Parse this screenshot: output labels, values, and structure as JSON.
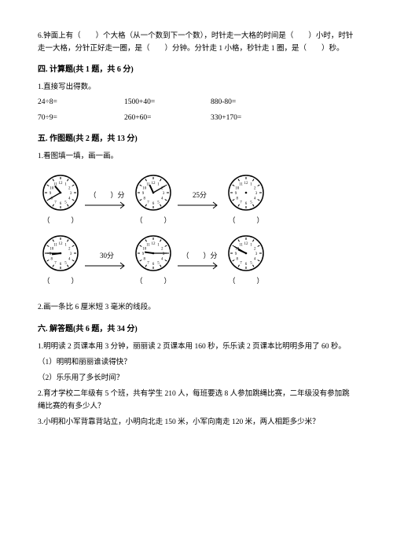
{
  "q6": "6.钟面上有（　　）个大格（从一个数到下一个数），时针走一大格的时间是（　　）小时，时针走一大格，分针正好走一圈，是（　　）分钟。分针走 1 小格，秒针走 1 圈，是（　　）秒。",
  "sec4_title": "四. 计算题(共 1 题，共 6 分)",
  "sec4_q": "1.直接写出得数。",
  "calc": {
    "r1": [
      "24÷8=",
      "1500+40=",
      "880-80="
    ],
    "r2": [
      "70÷9=",
      "260+60=",
      "330+170="
    ]
  },
  "sec5_title": "五. 作图题(共 2 题，共 13 分)",
  "sec5_q1": "1.看图填一填，画一画。",
  "clock": {
    "row1": {
      "c1": {
        "hour": 10,
        "min": 40
      },
      "arrow1": "（　　）分",
      "c2": {
        "hour": 11,
        "min": 10
      },
      "arrow2": "25分",
      "c3": {
        "hour": null,
        "min": null
      }
    },
    "row2": {
      "c1": {
        "hour": 8,
        "min": 45
      },
      "arrow1": "30分",
      "c2": {
        "hour": 9,
        "min": 15
      },
      "arrow2": "（　　）分",
      "c3": {
        "hour": 9,
        "min": 50
      }
    },
    "cell_paren": "（　　　）"
  },
  "sec5_q2": "2.画一条比 6 厘米短 3 毫米的线段。",
  "sec6_title": "六. 解答题(共 6 题，共 34 分)",
  "sec6_q1": "1.明明读 2 页课本用 3 分钟，丽丽读 2 页课本用 160 秒，乐乐读 2 页课本比明明多用了 60 秒。",
  "sec6_q1_1": "（1）明明和丽丽谁读得快？",
  "sec6_q1_2": "（2）乐乐用了多长时间？",
  "sec6_q2": "2.育才学校二年级有 5 个班，共有学生 210 人，每班要选 8 人参加跳绳比赛，二年级没有参加跳绳比赛的有多少人？",
  "sec6_q3": "3.小明和小军背靠背站立，小明向北走 150 米，小军向南走 120 米，两人相距多少米？",
  "style": {
    "page_bg": "#ffffff",
    "text_color": "#000000",
    "font_size_body": 9.5,
    "clock_radius": 22,
    "clock_stroke": "#000000",
    "clock_fill": "#ffffff"
  }
}
